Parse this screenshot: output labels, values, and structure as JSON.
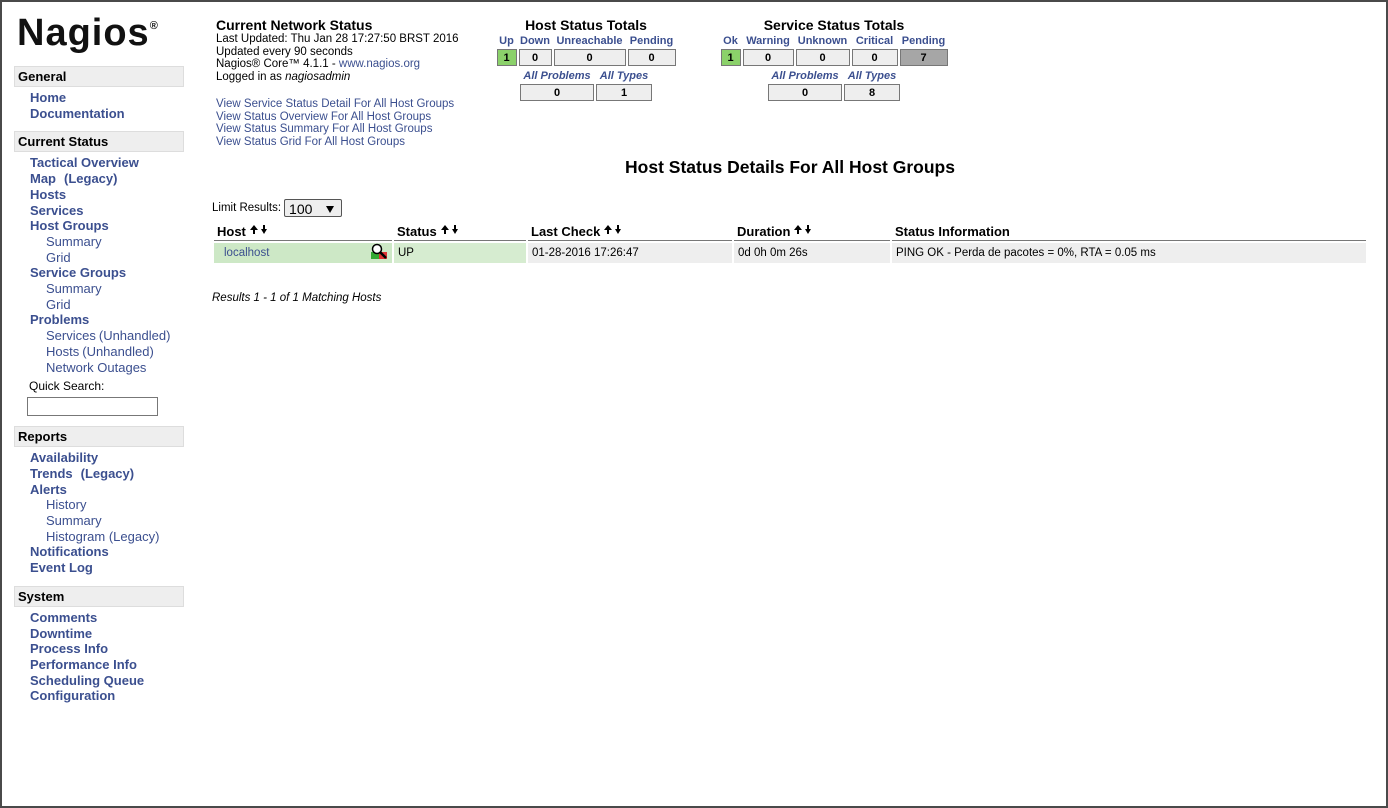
{
  "logo": {
    "name": "Nagios",
    "mark": "®"
  },
  "sidebar": [
    {
      "title": "General",
      "items": [
        {
          "label": "Home",
          "level": 1
        },
        {
          "label": "Documentation",
          "level": 1
        }
      ]
    },
    {
      "title": "Current Status",
      "items": [
        {
          "label": "Tactical Overview",
          "level": 1
        },
        {
          "label": "Map",
          "level": 1,
          "note": "(Legacy)"
        },
        {
          "label": "Hosts",
          "level": 1
        },
        {
          "label": "Services",
          "level": 1
        },
        {
          "label": "Host Groups",
          "level": 1
        },
        {
          "label": "Summary",
          "level": 2
        },
        {
          "label": "Grid",
          "level": 2
        },
        {
          "label": "Service Groups",
          "level": 1
        },
        {
          "label": "Summary",
          "level": 2
        },
        {
          "label": "Grid",
          "level": 2
        },
        {
          "label": "Problems",
          "level": 1
        },
        {
          "label": "Services",
          "level": 2,
          "note": "(Unhandled)"
        },
        {
          "label": "Hosts",
          "level": 2,
          "note": "(Unhandled)"
        },
        {
          "label": "Network Outages",
          "level": 2
        }
      ],
      "search_label": "Quick Search:"
    },
    {
      "title": "Reports",
      "items": [
        {
          "label": "Availability",
          "level": 1
        },
        {
          "label": "Trends",
          "level": 1,
          "note": "(Legacy)"
        },
        {
          "label": "Alerts",
          "level": 1
        },
        {
          "label": "History",
          "level": 2
        },
        {
          "label": "Summary",
          "level": 2
        },
        {
          "label": "Histogram (Legacy)",
          "level": 2
        },
        {
          "label": "Notifications",
          "level": 1
        },
        {
          "label": "Event Log",
          "level": 1
        }
      ]
    },
    {
      "title": "System",
      "items": [
        {
          "label": "Comments",
          "level": 1
        },
        {
          "label": "Downtime",
          "level": 1
        },
        {
          "label": "Process Info",
          "level": 1
        },
        {
          "label": "Performance Info",
          "level": 1
        },
        {
          "label": "Scheduling Queue",
          "level": 1
        },
        {
          "label": "Configuration",
          "level": 1
        }
      ]
    }
  ],
  "network_status": {
    "title": "Current Network Status",
    "last_updated": "Last Updated: Thu Jan 28 17:27:50 BRST 2016",
    "update_interval": "Updated every 90 seconds",
    "version": "Nagios® Core™ 4.1.1 - ",
    "version_link": "www.nagios.org",
    "login": "Logged in as ",
    "user": "nagiosadmin",
    "links": [
      "View Service Status Detail For All Host Groups",
      "View Status Overview For All Host Groups",
      "View Status Summary For All Host Groups",
      "View Status Grid For All Host Groups"
    ]
  },
  "host_totals": {
    "title": "Host Status Totals",
    "states": [
      {
        "label": "Up",
        "count": 1,
        "color": "#8bd16a"
      },
      {
        "label": "Down",
        "count": 0,
        "color": "#eeeeee"
      },
      {
        "label": "Unreachable",
        "count": 0,
        "color": "#eeeeee"
      },
      {
        "label": "Pending",
        "count": 0,
        "color": "#eeeeee"
      }
    ],
    "summary": [
      {
        "label": "All Problems",
        "count": 0
      },
      {
        "label": "All Types",
        "count": 1
      }
    ]
  },
  "service_totals": {
    "title": "Service Status Totals",
    "states": [
      {
        "label": "Ok",
        "count": 1,
        "color": "#8bd16a"
      },
      {
        "label": "Warning",
        "count": 0,
        "color": "#eeeeee"
      },
      {
        "label": "Unknown",
        "count": 0,
        "color": "#eeeeee"
      },
      {
        "label": "Critical",
        "count": 0,
        "color": "#eeeeee"
      },
      {
        "label": "Pending",
        "count": 7,
        "color": "#a6a6a6"
      }
    ],
    "summary": [
      {
        "label": "All Problems",
        "count": 0
      },
      {
        "label": "All Types",
        "count": 8
      }
    ]
  },
  "details": {
    "title": "Host Status Details For All Host Groups",
    "limit_label": "Limit Results:",
    "limit_value": "100",
    "columns": [
      {
        "label": "Host",
        "sortable": true
      },
      {
        "label": "Status",
        "sortable": true
      },
      {
        "label": "Last Check",
        "sortable": true
      },
      {
        "label": "Duration",
        "sortable": true
      },
      {
        "label": "Status Information",
        "sortable": false
      }
    ],
    "rows": [
      [
        "localhost",
        "UP",
        "01-28-2016 17:26:47",
        "0d 0h 0m 26s",
        "PING OK - Perda de pacotes = 0%, RTA = 0.05 ms"
      ]
    ],
    "footer": "Results 1 - 1 of 1 Matching Hosts"
  }
}
